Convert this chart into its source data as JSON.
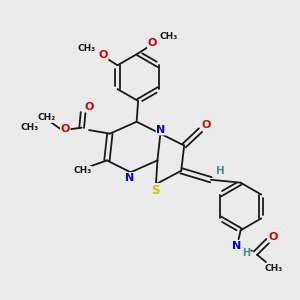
{
  "bg_color": "#ebebeb",
  "bond_color": "#1a1a1a",
  "figsize": [
    3.0,
    3.0
  ],
  "dpi": 100,
  "xlim": [
    0,
    10
  ],
  "ylim": [
    0,
    10
  ],
  "lw": 1.3,
  "N_color": "#0000ee",
  "S_color": "#cccc00",
  "O_color": "#dd0000",
  "H_color": "#4a9090",
  "C_color": "#1a1a1a"
}
